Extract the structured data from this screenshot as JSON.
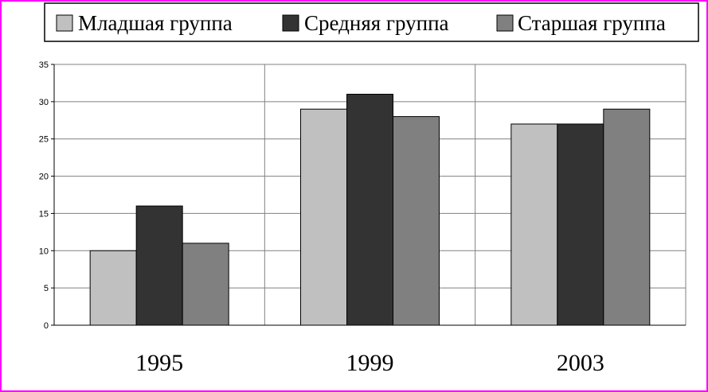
{
  "chart_data": {
    "type": "bar",
    "categories": [
      "1995",
      "1999",
      "2003"
    ],
    "series": [
      {
        "name": "Младшая группа",
        "values": [
          10,
          29,
          27
        ],
        "color": "#c0c0c0"
      },
      {
        "name": "Средняя группа",
        "values": [
          16,
          31,
          27
        ],
        "color": "#333333"
      },
      {
        "name": "Старшая группа",
        "values": [
          11,
          28,
          29
        ],
        "color": "#808080"
      }
    ],
    "title": "",
    "xlabel": "",
    "ylabel": "",
    "ylim": [
      0,
      35
    ],
    "yticks": [
      "0",
      "5",
      "10",
      "15",
      "20",
      "25",
      "30",
      "35"
    ],
    "grid": true,
    "legend_position": "top"
  },
  "colors": {
    "frame": "#ff00ff",
    "gridline": "#808080"
  }
}
